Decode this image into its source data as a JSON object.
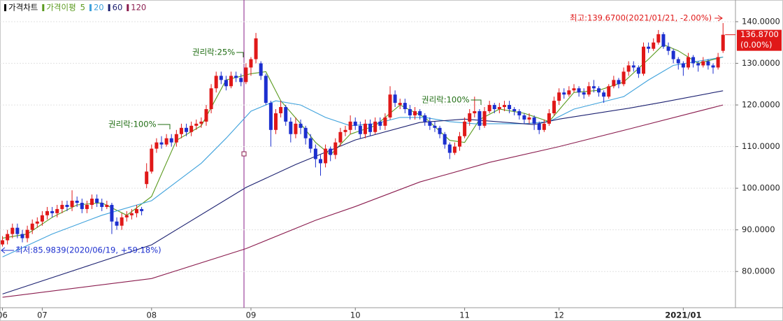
{
  "chart_data": {
    "type": "candlestick",
    "title": "가격차트",
    "ma_label": "가격이평",
    "up_color": "#e01818",
    "down_color": "#1c2fcf",
    "ylim": [
      71.3,
      141.85
    ],
    "yticks": [
      {
        "value": 80,
        "label": "80.0000"
      },
      {
        "value": 90,
        "label": "90.0000"
      },
      {
        "value": 100,
        "label": "100.0000"
      },
      {
        "value": 110,
        "label": "110.0000"
      },
      {
        "value": 120,
        "label": "120.0000"
      },
      {
        "value": 130,
        "label": "130.0000"
      },
      {
        "value": 140,
        "label": "140.0000"
      }
    ],
    "xlim": [
      -0.5,
      147.5
    ],
    "xticks": [
      {
        "value": 0,
        "label": "06"
      },
      {
        "value": 8,
        "label": "07"
      },
      {
        "value": 30,
        "label": "08"
      },
      {
        "value": 50,
        "label": "09"
      },
      {
        "value": 71,
        "label": "10"
      },
      {
        "value": 93,
        "label": "11"
      },
      {
        "value": 112,
        "label": "12"
      },
      {
        "value": 137,
        "label": "2021/01"
      }
    ],
    "grid": true,
    "candles": [
      [
        86.5,
        88.5,
        85.98,
        87.5
      ],
      [
        87.5,
        90,
        86.5,
        89
      ],
      [
        89,
        91.5,
        88,
        90.5
      ],
      [
        90.5,
        91.5,
        88,
        89
      ],
      [
        89,
        90,
        87,
        88
      ],
      [
        88,
        91,
        87,
        90
      ],
      [
        90,
        92.5,
        89,
        91.5
      ],
      [
        91.5,
        93,
        90.5,
        92
      ],
      [
        92,
        94.5,
        91,
        93.5
      ],
      [
        93.5,
        95.5,
        92.5,
        94.5
      ],
      [
        94.5,
        95.5,
        93,
        94
      ],
      [
        94,
        96,
        93,
        95
      ],
      [
        95,
        97,
        94,
        96
      ],
      [
        96,
        97,
        94.5,
        95.5
      ],
      [
        95.5,
        99.5,
        94.5,
        97
      ],
      [
        97,
        98,
        95.5,
        96.5
      ],
      [
        96.5,
        97.5,
        94,
        95
      ],
      [
        95,
        97,
        94,
        96
      ],
      [
        96,
        98.5,
        95,
        97.5
      ],
      [
        97.5,
        98.5,
        95.5,
        96.5
      ],
      [
        96.5,
        97.5,
        94.5,
        95.5
      ],
      [
        95.5,
        97,
        95,
        96
      ],
      [
        96,
        96.5,
        89,
        92
      ],
      [
        92,
        93,
        90,
        91
      ],
      [
        91,
        94,
        90,
        93
      ],
      [
        93,
        94.5,
        92,
        93.5
      ],
      [
        93.5,
        95,
        92.5,
        94
      ],
      [
        94,
        96,
        93,
        95
      ],
      [
        95,
        95.5,
        93.5,
        94.5
      ],
      [
        101,
        106,
        100,
        104
      ],
      [
        104,
        110.5,
        103.5,
        109.5
      ],
      [
        109.5,
        112,
        108.5,
        111
      ],
      [
        111,
        112.5,
        109.5,
        110.5
      ],
      [
        110.5,
        113,
        110,
        112
      ],
      [
        112,
        113,
        110,
        111
      ],
      [
        111,
        114,
        110,
        113
      ],
      [
        113,
        115.5,
        112,
        114.5
      ],
      [
        114.5,
        115.5,
        112.5,
        113.5
      ],
      [
        113.5,
        116,
        112.5,
        115
      ],
      [
        115,
        116.5,
        114,
        115.5
      ],
      [
        115.5,
        117,
        114.5,
        116
      ],
      [
        116,
        120,
        115,
        119
      ],
      [
        119,
        125,
        118,
        124
      ],
      [
        124,
        128,
        123,
        127
      ],
      [
        127,
        128,
        125,
        126
      ],
      [
        126,
        127,
        123.5,
        124.5
      ],
      [
        124.5,
        128,
        124,
        127
      ],
      [
        127,
        128,
        125.5,
        126.5
      ],
      [
        126.5,
        127.5,
        124.5,
        125.5
      ],
      [
        125.5,
        130,
        125,
        129
      ],
      [
        129,
        131.5,
        127,
        131
      ],
      [
        131,
        137.3,
        130,
        136
      ],
      [
        130,
        130.5,
        126,
        127
      ],
      [
        127,
        127.5,
        120,
        120.5
      ],
      [
        120.5,
        121,
        110,
        114
      ],
      [
        114,
        119,
        113,
        118
      ],
      [
        118,
        121,
        117,
        119.5
      ],
      [
        119.5,
        120,
        115,
        116
      ],
      [
        116,
        117,
        111,
        113
      ],
      [
        113,
        117,
        112,
        115.5
      ],
      [
        115.5,
        116.5,
        113,
        114.5
      ],
      [
        114.5,
        115,
        110.5,
        112
      ],
      [
        112,
        113,
        108.5,
        109.5
      ],
      [
        109.5,
        110.5,
        105,
        107
      ],
      [
        107,
        108,
        103,
        106
      ],
      [
        106,
        110.5,
        105,
        109.5
      ],
      [
        109.5,
        110,
        106.5,
        108
      ],
      [
        108,
        112,
        107,
        111
      ],
      [
        111,
        114.5,
        110,
        113.5
      ],
      [
        113.5,
        115,
        112.5,
        114
      ],
      [
        114,
        117.5,
        113,
        116
      ],
      [
        116,
        117,
        114,
        115
      ],
      [
        115,
        116,
        112,
        113
      ],
      [
        113,
        116.5,
        112,
        115.5
      ],
      [
        115.5,
        116.5,
        112.5,
        113.5
      ],
      [
        113.5,
        117,
        113,
        116
      ],
      [
        116,
        117,
        114,
        115
      ],
      [
        115,
        118,
        114,
        117
      ],
      [
        117,
        124.5,
        116.5,
        122.5
      ],
      [
        122.5,
        123.5,
        119.5,
        120.5
      ],
      [
        120,
        121.5,
        119,
        120.5
      ],
      [
        120.5,
        121.5,
        118,
        119
      ],
      [
        119,
        120,
        116.5,
        117.5
      ],
      [
        117.5,
        119.5,
        116.5,
        118.5
      ],
      [
        118.5,
        119,
        116.5,
        117.5
      ],
      [
        117.5,
        118,
        115,
        116
      ],
      [
        116,
        117,
        114,
        115
      ],
      [
        115,
        116,
        113.5,
        114.5
      ],
      [
        114.5,
        115,
        112,
        113
      ],
      [
        113,
        113.5,
        109.5,
        110.5
      ],
      [
        110.5,
        111,
        107,
        108.5
      ],
      [
        108.5,
        111,
        108,
        110
      ],
      [
        110,
        113.5,
        109,
        112.5
      ],
      [
        112.5,
        117,
        112,
        116
      ],
      [
        116,
        119,
        115,
        118
      ],
      [
        118,
        122,
        117,
        118.5
      ],
      [
        118.5,
        119,
        114,
        115
      ],
      [
        115,
        119.5,
        114.5,
        118.5
      ],
      [
        118.5,
        121,
        118,
        120
      ],
      [
        120,
        120.5,
        118,
        119
      ],
      [
        119,
        120.5,
        118,
        119.5
      ],
      [
        119.5,
        121,
        118.5,
        120
      ],
      [
        120,
        121,
        118,
        119
      ],
      [
        119,
        119.5,
        117.5,
        118.5
      ],
      [
        118.5,
        119,
        116.5,
        117.5
      ],
      [
        117.5,
        118,
        115.5,
        116.5
      ],
      [
        116.5,
        118,
        115.5,
        117
      ],
      [
        117,
        117.5,
        114,
        115.5
      ],
      [
        115.5,
        116,
        113,
        114
      ],
      [
        114,
        116.5,
        113.5,
        115.5
      ],
      [
        115.5,
        119,
        115,
        118
      ],
      [
        118,
        122,
        117.5,
        121
      ],
      [
        121,
        124,
        120,
        123
      ],
      [
        123,
        124,
        121.5,
        122.5
      ],
      [
        122.5,
        124.5,
        122,
        123.5
      ],
      [
        123.5,
        125,
        123,
        124
      ],
      [
        124,
        124.5,
        122,
        123
      ],
      [
        123,
        124,
        121.5,
        122.5
      ],
      [
        122.5,
        125.5,
        122,
        124.5
      ],
      [
        124.5,
        126,
        123,
        124
      ],
      [
        124,
        124.5,
        122,
        123
      ],
      [
        123,
        123.5,
        120.5,
        122
      ],
      [
        122,
        125,
        121.5,
        124.5
      ],
      [
        124.5,
        127,
        124,
        126
      ],
      [
        126,
        126.5,
        124,
        125
      ],
      [
        125,
        129,
        124.5,
        128
      ],
      [
        128,
        130.5,
        127,
        129.5
      ],
      [
        129.5,
        130.5,
        128,
        129
      ],
      [
        129,
        129.5,
        126.5,
        127.5
      ],
      [
        127.5,
        135,
        127,
        134
      ],
      [
        134,
        135,
        132.5,
        133.5
      ],
      [
        133.5,
        136,
        133,
        135
      ],
      [
        135,
        138,
        134.5,
        137
      ],
      [
        137,
        137.5,
        133.5,
        134
      ],
      [
        134,
        135,
        132,
        133
      ],
      [
        133,
        133.5,
        130,
        131
      ],
      [
        131,
        131.5,
        128.5,
        130
      ],
      [
        130,
        130.5,
        127,
        129
      ],
      [
        129,
        132.5,
        128.5,
        131.5
      ],
      [
        131.5,
        132,
        129,
        130
      ],
      [
        130,
        130.5,
        128,
        129.5
      ],
      [
        129.5,
        131.5,
        129,
        130.5
      ],
      [
        130.5,
        131,
        128.5,
        129.5
      ],
      [
        129.5,
        130,
        127.5,
        129
      ],
      [
        129,
        132.5,
        128.5,
        131.5
      ],
      [
        133,
        139.67,
        132.5,
        136.87
      ]
    ],
    "series": [
      {
        "name": "5",
        "color": "#5a9a1e",
        "x": [
          0,
          5,
          10,
          15,
          20,
          25,
          30,
          35,
          40,
          45,
          50,
          53,
          56,
          60,
          63,
          66,
          70,
          75,
          80,
          85,
          90,
          93,
          96,
          100,
          105,
          110,
          115,
          120,
          125,
          130,
          133,
          136,
          140,
          145
        ],
        "values": [
          88,
          89,
          93,
          96,
          96.5,
          93.5,
          98,
          111.5,
          115,
          126,
          127.5,
          128,
          121,
          115.5,
          111,
          108,
          113,
          115,
          120,
          117,
          111.5,
          111,
          116.5,
          119,
          118,
          116,
          123,
          123.5,
          125.5,
          131,
          134.5,
          133,
          130,
          131.5
        ]
      },
      {
        "name": "20",
        "color": "#3fa2dc",
        "x": [
          0,
          10,
          20,
          30,
          40,
          45,
          50,
          55,
          60,
          65,
          70,
          75,
          80,
          85,
          90,
          95,
          100,
          105,
          110,
          115,
          120,
          125,
          130,
          135,
          140,
          145
        ],
        "values": [
          83.5,
          89,
          93.5,
          97,
          106,
          112,
          118.5,
          121,
          120,
          117,
          115,
          115.5,
          117,
          117,
          116,
          115.5,
          115.5,
          115.5,
          116,
          119,
          120.5,
          122,
          126,
          129.5,
          130.5,
          131.5
        ]
      },
      {
        "name": "60",
        "color": "#1b2070",
        "x": [
          0,
          30,
          49,
          59,
          71,
          84,
          93,
          107,
          112,
          126,
          133,
          145
        ],
        "values": [
          74.6,
          86.4,
          100.2,
          105.7,
          111.6,
          115.8,
          116.6,
          115.3,
          116.6,
          119.2,
          120.7,
          123.4
        ]
      },
      {
        "name": "120",
        "color": "#8a1c4e",
        "x": [
          0,
          30,
          49,
          63,
          71,
          84,
          98,
          112,
          126,
          145
        ],
        "values": [
          73.8,
          78.3,
          85.5,
          92.3,
          95.6,
          101.5,
          106.2,
          110,
          114.2,
          120
        ]
      }
    ],
    "annotations": [
      "권리락:100%",
      "권리락:25%",
      "권리락:100%"
    ],
    "high_label": "최고:139.6700(2021/01/21, -2.00%)",
    "low_label": "최저:85.9839(2020/06/19, +59.18%)",
    "last_price_label": "136.8700",
    "last_change_label": "(0.00%)"
  }
}
